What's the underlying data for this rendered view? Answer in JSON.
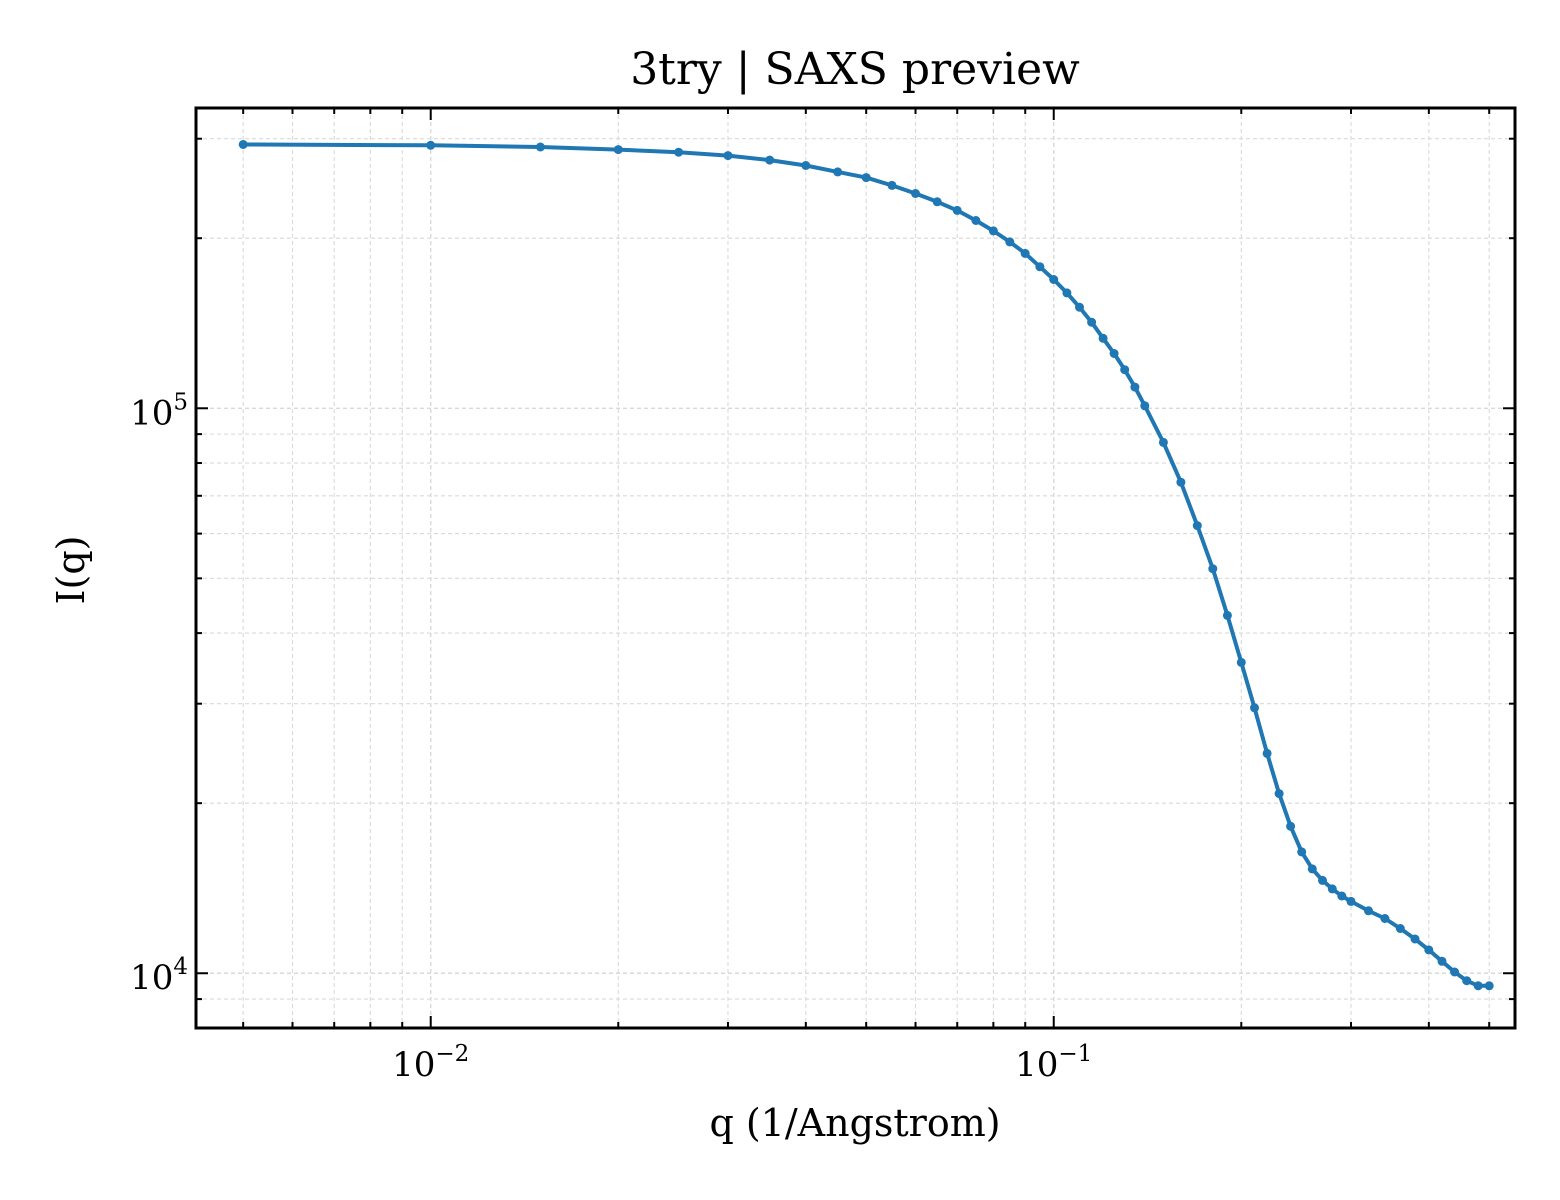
{
  "chart_data": {
    "type": "line",
    "title": "3try | SAXS preview",
    "xlabel": "q (1/Angstrom)",
    "ylabel": "I(q)",
    "x_scale": "log",
    "y_scale": "log",
    "xlim": [
      0.0042,
      0.55
    ],
    "ylim": [
      8000,
      340000
    ],
    "grid": true,
    "legend": "none",
    "x_tick_labels": [
      {
        "value": 0.01,
        "base": "10",
        "exp": "−2"
      },
      {
        "value": 0.1,
        "base": "10",
        "exp": "−1"
      }
    ],
    "y_tick_labels": [
      {
        "value": 10000,
        "base": "10",
        "exp": "4"
      },
      {
        "value": 100000,
        "base": "10",
        "exp": "5"
      }
    ],
    "series": [
      {
        "color": "#1f77b4",
        "points": [
          [
            0.005,
            293000
          ],
          [
            0.01,
            292000
          ],
          [
            0.015,
            290000
          ],
          [
            0.02,
            287000
          ],
          [
            0.025,
            284000
          ],
          [
            0.03,
            280000
          ],
          [
            0.035,
            275000
          ],
          [
            0.04,
            269000
          ],
          [
            0.045,
            262000
          ],
          [
            0.05,
            256000
          ],
          [
            0.055,
            248000
          ],
          [
            0.06,
            240000
          ],
          [
            0.065,
            232000
          ],
          [
            0.07,
            224000
          ],
          [
            0.075,
            215000
          ],
          [
            0.08,
            206000
          ],
          [
            0.085,
            197000
          ],
          [
            0.09,
            188000
          ],
          [
            0.095,
            178000
          ],
          [
            0.1,
            169000
          ],
          [
            0.105,
            160000
          ],
          [
            0.11,
            151000
          ],
          [
            0.115,
            142000
          ],
          [
            0.12,
            133000
          ],
          [
            0.125,
            125000
          ],
          [
            0.13,
            117000
          ],
          [
            0.135,
            109000
          ],
          [
            0.14,
            101000
          ],
          [
            0.15,
            87000
          ],
          [
            0.16,
            74000
          ],
          [
            0.17,
            62000
          ],
          [
            0.18,
            52000
          ],
          [
            0.19,
            43000
          ],
          [
            0.2,
            35500
          ],
          [
            0.21,
            29500
          ],
          [
            0.22,
            24500
          ],
          [
            0.23,
            20800
          ],
          [
            0.24,
            18200
          ],
          [
            0.25,
            16400
          ],
          [
            0.26,
            15300
          ],
          [
            0.27,
            14600
          ],
          [
            0.28,
            14100
          ],
          [
            0.29,
            13700
          ],
          [
            0.3,
            13400
          ],
          [
            0.32,
            12900
          ],
          [
            0.34,
            12500
          ],
          [
            0.36,
            12000
          ],
          [
            0.38,
            11500
          ],
          [
            0.4,
            11000
          ],
          [
            0.42,
            10500
          ],
          [
            0.44,
            10050
          ],
          [
            0.46,
            9700
          ],
          [
            0.48,
            9500
          ],
          [
            0.5,
            9500
          ]
        ]
      }
    ]
  }
}
